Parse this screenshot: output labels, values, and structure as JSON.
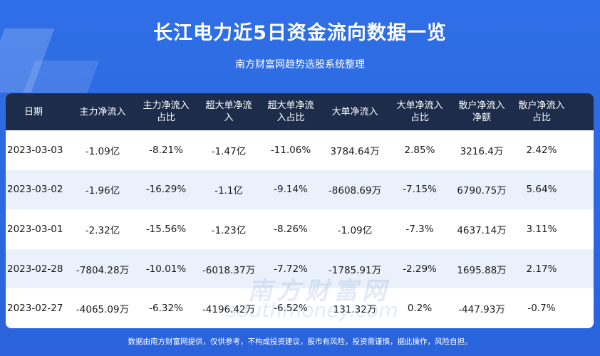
{
  "header": {
    "title": "长江电力近5日资金流向数据一览",
    "subtitle": "南方财富网趋势选股系统整理"
  },
  "table": {
    "columns": [
      [
        "日期"
      ],
      [
        "主力净流入"
      ],
      [
        "主力净流入",
        "占比"
      ],
      [
        "超大单净流",
        "入"
      ],
      [
        "超大单净流",
        "入占比"
      ],
      [
        "大单净流入"
      ],
      [
        "大单净流入",
        "占比"
      ],
      [
        "散户净流入",
        "净额"
      ],
      [
        "散户净流入",
        "占比"
      ]
    ],
    "rows": [
      [
        "2023-03-03",
        "-1.09亿",
        "-8.21%",
        "-1.47亿",
        "-11.06%",
        "3784.64万",
        "2.85%",
        "3216.4万",
        "2.42%"
      ],
      [
        "2023-03-02",
        "-1.96亿",
        "-16.29%",
        "-1.1亿",
        "-9.14%",
        "-8608.69万",
        "-7.15%",
        "6790.75万",
        "5.64%"
      ],
      [
        "2023-03-01",
        "-2.32亿",
        "-15.56%",
        "-1.23亿",
        "-8.26%",
        "-1.09亿",
        "-7.3%",
        "4637.14万",
        "3.11%"
      ],
      [
        "2023-02-28",
        "-7804.28万",
        "-10.01%",
        "-6018.37万",
        "-7.72%",
        "-1785.91万",
        "-2.29%",
        "1695.88万",
        "2.17%"
      ],
      [
        "2023-02-27",
        "-4065.09万",
        "-6.32%",
        "-4196.42万",
        "-6.52%",
        "131.32万",
        "0.2%",
        "-447.93万",
        "-0.7%"
      ]
    ]
  },
  "watermark": {
    "cn": "南方财富网",
    "en": "southmoney.com"
  },
  "footer": {
    "disclaimer": "数据由南方财富网提供，仅供参考，不构成投资建议，股市有风险，投资需谨慎，据此操作，风险自担。"
  },
  "colors": {
    "background": "#2f6fe6",
    "header_row": "#1d2c4a",
    "stripe": "#eaf1fb"
  }
}
